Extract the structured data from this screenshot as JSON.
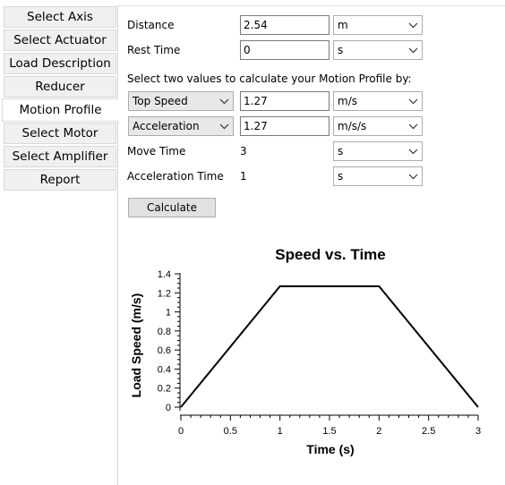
{
  "sidebar": {
    "items": [
      {
        "label": "Select Axis"
      },
      {
        "label": "Select Actuator"
      },
      {
        "label": "Load Description"
      },
      {
        "label": "Reducer"
      },
      {
        "label": "Motion Profile"
      },
      {
        "label": "Select Motor"
      },
      {
        "label": "Select Amplifier"
      },
      {
        "label": "Report"
      }
    ],
    "active": "Motion Profile"
  },
  "form": {
    "distance": {
      "label": "Distance",
      "value": "2.54",
      "unit": "m"
    },
    "rest_time": {
      "label": "Rest Time",
      "value": "0",
      "unit": "s"
    },
    "instruction": "Select two values to calculate your Motion Profile by:",
    "param1": {
      "type": "Top Speed",
      "value": "1.27",
      "unit": "m/s"
    },
    "param2": {
      "type": "Acceleration",
      "value": "1.27",
      "unit": "m/s/s"
    },
    "move_time": {
      "label": "Move Time",
      "value": "3",
      "unit": "s"
    },
    "accel_time": {
      "label": "Acceleration Time",
      "value": "1",
      "unit": "s"
    },
    "calculate_label": "Calculate"
  },
  "chart_data": {
    "type": "line",
    "title": "Speed vs. Time",
    "xlabel": "Time (s)",
    "ylabel": "Load Speed (m/s)",
    "xlim": [
      0,
      3
    ],
    "ylim": [
      0,
      1.4
    ],
    "x_ticks": [
      "0",
      "0.5",
      "1",
      "1.5",
      "2",
      "2.5",
      "3"
    ],
    "y_ticks": [
      "0",
      "0.2",
      "0.4",
      "0.6",
      "0.8",
      "1",
      "1.2",
      "1.4"
    ],
    "x": [
      0,
      1,
      2,
      3
    ],
    "y": [
      0,
      1.27,
      1.27,
      0
    ],
    "grid": false,
    "line_color": "#000000"
  }
}
